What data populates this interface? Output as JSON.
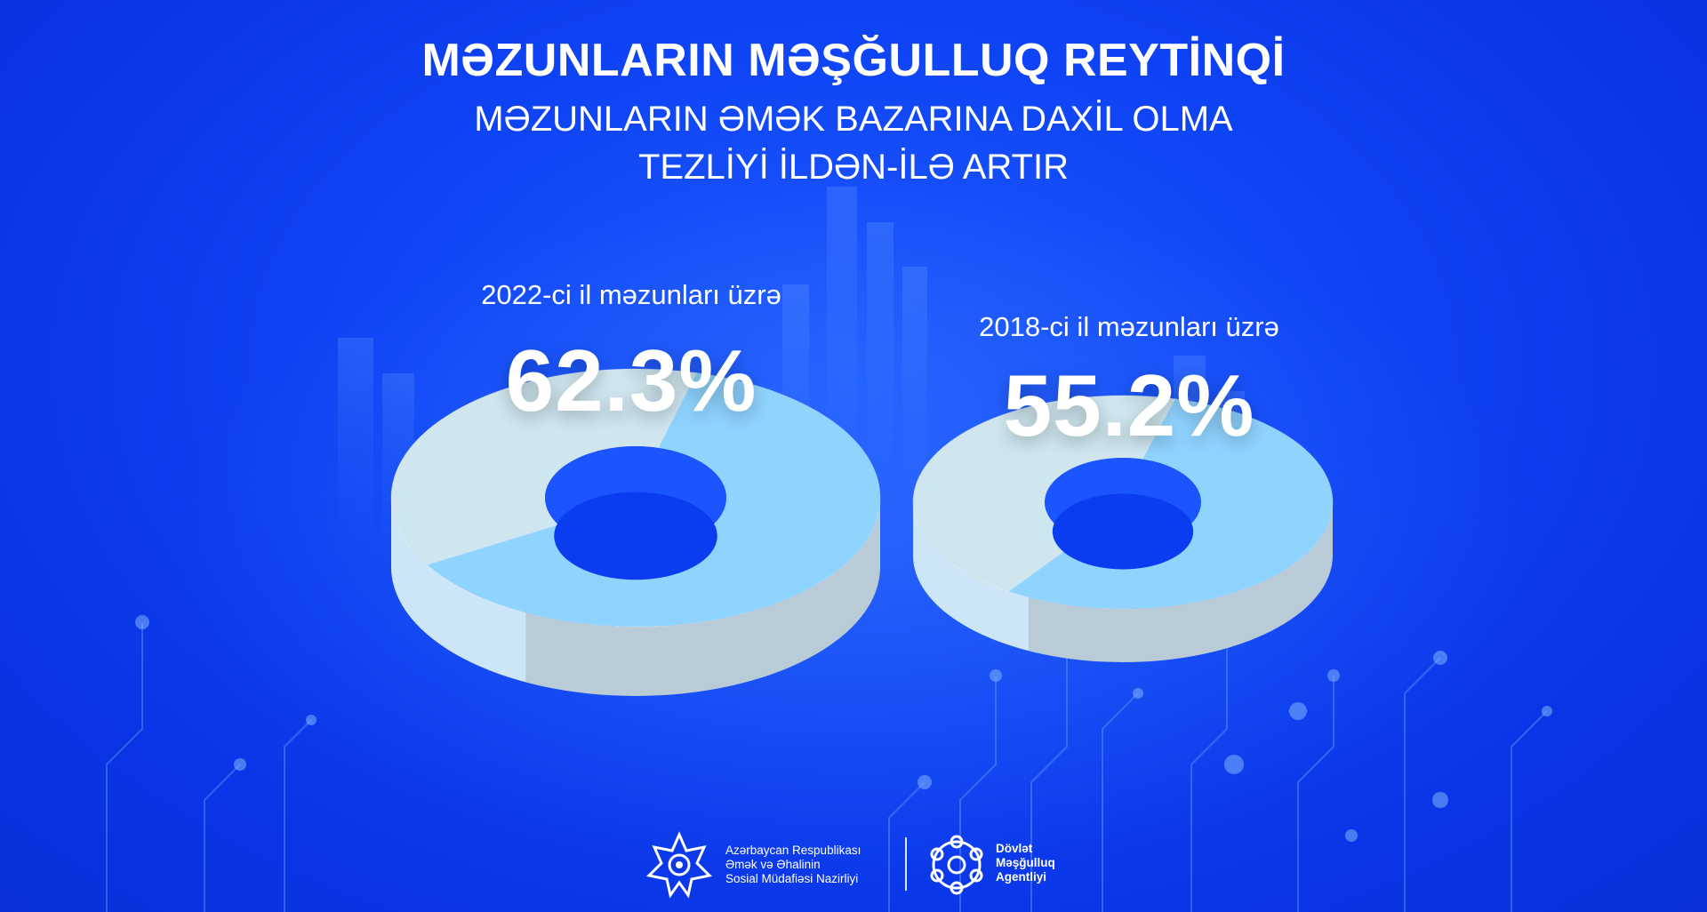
{
  "title": "MƏZUNLARIN MƏŞĞULLUQ REYTİNQİ",
  "subtitle_line1": "MƏZUNLARIN ƏMƏK BAZARINA DAXİL OLMA",
  "subtitle_line2": "TEZLİYİ İLDƏN-İLƏ ARTIR",
  "chart_data": [
    {
      "type": "pie",
      "label": "2022-ci il məzunları üzrə",
      "value_text": "62.3%",
      "values": [
        62.3,
        37.7
      ]
    },
    {
      "type": "pie",
      "label": "2018-ci il məzunları üzrə",
      "value_text": "55.2%",
      "values": [
        55.2,
        44.8
      ]
    }
  ],
  "colors": {
    "background": "#0f45f5",
    "slice_highlight_top": "#8fd3ff",
    "slice_rest_top": "#cfe6ef",
    "inner_hole": "#1a55ff"
  },
  "footer": {
    "left_logo": {
      "line1": "Azərbaycan Respublikası",
      "line2": "Əmək və Əhalinin",
      "line3": "Sosial Müdafiəsi Nazirliyi",
      "icon": "ministry-emblem"
    },
    "right_logo": {
      "line1": "Dövlət",
      "line2": "Məşğulluq",
      "line3": "Agentliyi",
      "icon": "agency-emblem"
    }
  }
}
